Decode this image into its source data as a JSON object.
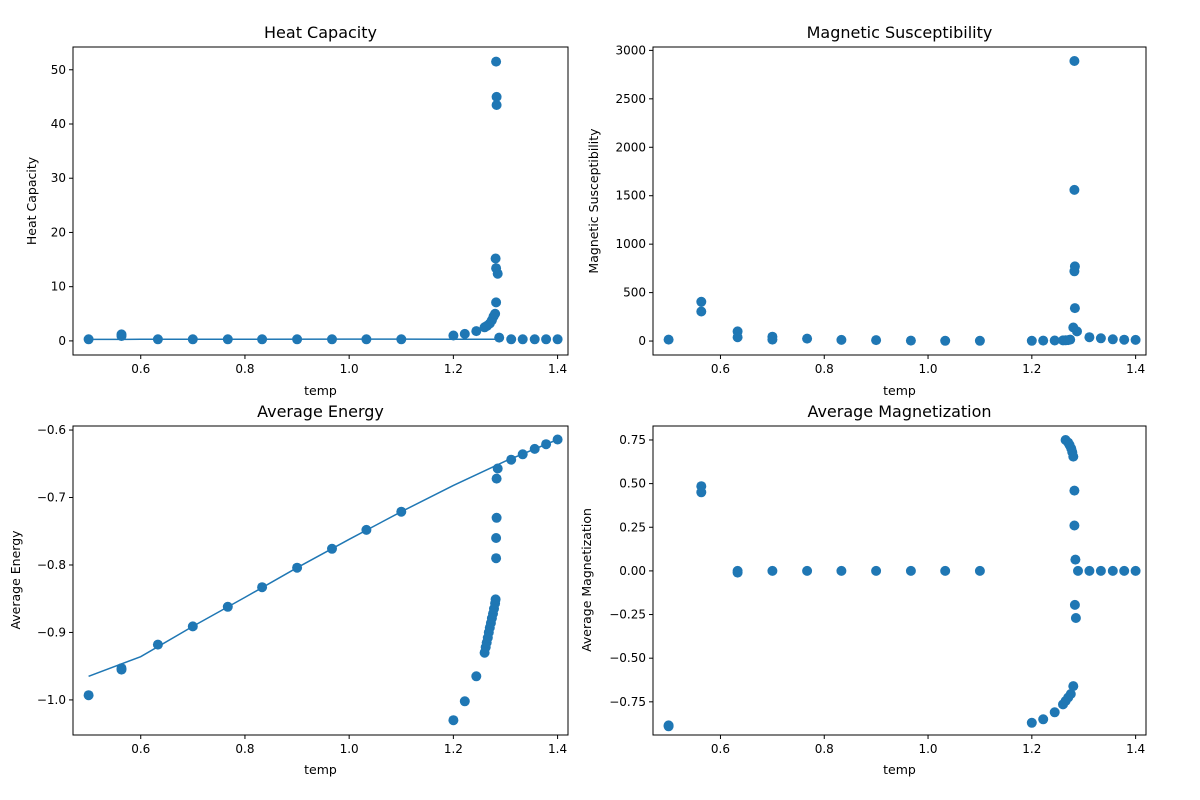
{
  "figure": {
    "marker_color": "#1f77b4",
    "line_color": "#1f77b4"
  },
  "chart_data": [
    {
      "type": "scatter",
      "title": "Heat Capacity",
      "xlabel": "temp",
      "ylabel": "Heat Capacity",
      "xlim": [
        0.47,
        1.42
      ],
      "ylim": [
        -2.6,
        54.2
      ],
      "grid": false,
      "xticks": [
        0.6,
        0.8,
        1.0,
        1.2,
        1.4
      ],
      "yticks": [
        0,
        10,
        20,
        30,
        40,
        50
      ],
      "xtick_labels": [
        "0.6",
        "0.8",
        "1.0",
        "1.2",
        "1.4"
      ],
      "ytick_labels": [
        "0",
        "10",
        "20",
        "30",
        "40",
        "50"
      ],
      "points": [
        [
          0.5,
          0.3
        ],
        [
          0.563,
          1.2
        ],
        [
          0.563,
          0.9
        ],
        [
          0.633,
          0.3
        ],
        [
          0.7,
          0.3
        ],
        [
          0.767,
          0.3
        ],
        [
          0.833,
          0.3
        ],
        [
          0.9,
          0.3
        ],
        [
          0.967,
          0.3
        ],
        [
          1.033,
          0.3
        ],
        [
          1.1,
          0.3
        ],
        [
          1.2,
          1.0
        ],
        [
          1.222,
          1.3
        ],
        [
          1.244,
          1.8
        ],
        [
          1.26,
          2.5
        ],
        [
          1.265,
          2.8
        ],
        [
          1.27,
          3.2
        ],
        [
          1.274,
          3.8
        ],
        [
          1.277,
          4.5
        ],
        [
          1.28,
          5.0
        ],
        [
          1.282,
          7.1
        ],
        [
          1.282,
          13.4
        ],
        [
          1.281,
          15.2
        ],
        [
          1.285,
          12.4
        ],
        [
          1.283,
          43.5
        ],
        [
          1.283,
          45.0
        ],
        [
          1.282,
          51.5
        ],
        [
          1.288,
          0.6
        ],
        [
          1.311,
          0.3
        ],
        [
          1.333,
          0.3
        ],
        [
          1.356,
          0.3
        ],
        [
          1.378,
          0.3
        ],
        [
          1.4,
          0.3
        ]
      ],
      "line": [
        [
          0.5,
          0.28
        ],
        [
          0.6,
          0.3
        ],
        [
          0.8,
          0.32
        ],
        [
          1.0,
          0.33
        ],
        [
          1.1,
          0.33
        ],
        [
          1.2,
          0.32
        ],
        [
          1.283,
          0.3
        ]
      ]
    },
    {
      "type": "scatter",
      "title": "Magnetic Susceptibility",
      "xlabel": "temp",
      "ylabel": "Magnetic Susceptibility",
      "xlim": [
        0.47,
        1.42
      ],
      "ylim": [
        -144,
        3035
      ],
      "grid": false,
      "xticks": [
        0.6,
        0.8,
        1.0,
        1.2,
        1.4
      ],
      "yticks": [
        0,
        500,
        1000,
        1500,
        2000,
        2500,
        3000
      ],
      "xtick_labels": [
        "0.6",
        "0.8",
        "1.0",
        "1.2",
        "1.4"
      ],
      "ytick_labels": [
        "0",
        "500",
        "1000",
        "1500",
        "2000",
        "2500",
        "3000"
      ],
      "points": [
        [
          0.5,
          15
        ],
        [
          0.563,
          405
        ],
        [
          0.563,
          305
        ],
        [
          0.633,
          100
        ],
        [
          0.633,
          40
        ],
        [
          0.7,
          45
        ],
        [
          0.7,
          15
        ],
        [
          0.767,
          25
        ],
        [
          0.833,
          12
        ],
        [
          0.9,
          10
        ],
        [
          0.967,
          5
        ],
        [
          1.033,
          3
        ],
        [
          1.1,
          3
        ],
        [
          1.2,
          3
        ],
        [
          1.222,
          5
        ],
        [
          1.244,
          6
        ],
        [
          1.26,
          7
        ],
        [
          1.265,
          8
        ],
        [
          1.27,
          10
        ],
        [
          1.274,
          15
        ],
        [
          1.28,
          140
        ],
        [
          1.282,
          720
        ],
        [
          1.283,
          770
        ],
        [
          1.282,
          1560
        ],
        [
          1.282,
          2890
        ],
        [
          1.283,
          340
        ],
        [
          1.287,
          100
        ],
        [
          1.311,
          40
        ],
        [
          1.333,
          28
        ],
        [
          1.356,
          18
        ],
        [
          1.378,
          14
        ],
        [
          1.4,
          12
        ]
      ]
    },
    {
      "type": "scatter",
      "title": "Average Energy",
      "xlabel": "temp",
      "ylabel": "Average Energy",
      "xlim": [
        0.47,
        1.42
      ],
      "ylim": [
        -1.052,
        -0.594
      ],
      "grid": false,
      "xticks": [
        0.6,
        0.8,
        1.0,
        1.2,
        1.4
      ],
      "yticks": [
        -1.0,
        -0.9,
        -0.8,
        -0.7,
        -0.6
      ],
      "xtick_labels": [
        "0.6",
        "0.8",
        "1.0",
        "1.2",
        "1.4"
      ],
      "ytick_labels": [
        "−1.0",
        "−0.9",
        "−0.8",
        "−0.7",
        "−0.6"
      ],
      "points": [
        [
          0.5,
          -0.993
        ],
        [
          0.563,
          -0.953
        ],
        [
          0.563,
          -0.955
        ],
        [
          0.633,
          -0.918
        ],
        [
          0.7,
          -0.891
        ],
        [
          0.767,
          -0.862
        ],
        [
          0.833,
          -0.833
        ],
        [
          0.9,
          -0.804
        ],
        [
          0.967,
          -0.776
        ],
        [
          1.033,
          -0.748
        ],
        [
          1.1,
          -0.721
        ],
        [
          1.2,
          -1.03
        ],
        [
          1.222,
          -1.002
        ],
        [
          1.244,
          -0.965
        ],
        [
          1.26,
          -0.93
        ],
        [
          1.262,
          -0.922
        ],
        [
          1.264,
          -0.915
        ],
        [
          1.266,
          -0.908
        ],
        [
          1.268,
          -0.9
        ],
        [
          1.27,
          -0.893
        ],
        [
          1.272,
          -0.886
        ],
        [
          1.274,
          -0.879
        ],
        [
          1.276,
          -0.872
        ],
        [
          1.278,
          -0.865
        ],
        [
          1.28,
          -0.857
        ],
        [
          1.281,
          -0.851
        ],
        [
          1.282,
          -0.79
        ],
        [
          1.282,
          -0.76
        ],
        [
          1.283,
          -0.73
        ],
        [
          1.283,
          -0.672
        ],
        [
          1.285,
          -0.657
        ],
        [
          1.311,
          -0.644
        ],
        [
          1.333,
          -0.636
        ],
        [
          1.356,
          -0.628
        ],
        [
          1.378,
          -0.621
        ],
        [
          1.4,
          -0.614
        ]
      ],
      "line": [
        [
          0.5,
          -0.965
        ],
        [
          0.6,
          -0.936
        ],
        [
          0.7,
          -0.891
        ],
        [
          0.8,
          -0.848
        ],
        [
          0.9,
          -0.804
        ],
        [
          1.0,
          -0.762
        ],
        [
          1.1,
          -0.721
        ],
        [
          1.2,
          -0.682
        ],
        [
          1.3,
          -0.646
        ],
        [
          1.4,
          -0.614
        ]
      ]
    },
    {
      "type": "scatter",
      "title": "Average Magnetization",
      "xlabel": "temp",
      "ylabel": "Average Magnetization",
      "xlim": [
        0.47,
        1.42
      ],
      "ylim": [
        -0.94,
        0.83
      ],
      "grid": false,
      "xticks": [
        0.6,
        0.8,
        1.0,
        1.2,
        1.4
      ],
      "yticks": [
        -0.75,
        -0.5,
        -0.25,
        0.0,
        0.25,
        0.5,
        0.75
      ],
      "xtick_labels": [
        "0.6",
        "0.8",
        "1.0",
        "1.2",
        "1.4"
      ],
      "ytick_labels": [
        "−0.75",
        "−0.50",
        "−0.25",
        "0.00",
        "0.25",
        "0.50",
        "0.75"
      ],
      "points": [
        [
          0.5,
          -0.89
        ],
        [
          0.5,
          -0.885
        ],
        [
          0.563,
          0.485
        ],
        [
          0.563,
          0.45
        ],
        [
          0.633,
          0.0
        ],
        [
          0.633,
          -0.01
        ],
        [
          0.7,
          0.0
        ],
        [
          0.767,
          0.0
        ],
        [
          0.833,
          0.0
        ],
        [
          0.9,
          0.0
        ],
        [
          0.967,
          0.0
        ],
        [
          1.033,
          0.0
        ],
        [
          1.1,
          0.0
        ],
        [
          1.2,
          -0.87
        ],
        [
          1.222,
          -0.85
        ],
        [
          1.244,
          -0.81
        ],
        [
          1.26,
          -0.765
        ],
        [
          1.265,
          -0.745
        ],
        [
          1.27,
          -0.725
        ],
        [
          1.275,
          -0.705
        ],
        [
          1.28,
          -0.66
        ],
        [
          1.265,
          0.75
        ],
        [
          1.27,
          0.735
        ],
        [
          1.273,
          0.72
        ],
        [
          1.276,
          0.7
        ],
        [
          1.278,
          0.68
        ],
        [
          1.28,
          0.655
        ],
        [
          1.282,
          0.46
        ],
        [
          1.282,
          0.26
        ],
        [
          1.284,
          0.065
        ],
        [
          1.283,
          -0.195
        ],
        [
          1.285,
          -0.27
        ],
        [
          1.289,
          0.0
        ],
        [
          1.311,
          0.0
        ],
        [
          1.333,
          0.0
        ],
        [
          1.356,
          0.0
        ],
        [
          1.378,
          0.0
        ],
        [
          1.4,
          0.0
        ]
      ]
    }
  ]
}
